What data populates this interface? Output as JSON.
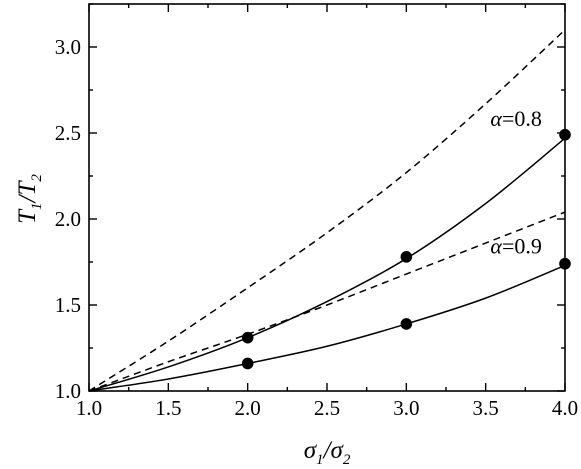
{
  "chart_data": {
    "type": "line",
    "title": "",
    "xlabel": "σ1/σ2",
    "ylabel": "T1/T2",
    "xlim": [
      1.0,
      4.0
    ],
    "ylim": [
      1.0,
      3.25
    ],
    "xticks": [
      1.0,
      1.5,
      2.0,
      2.5,
      3.0,
      3.5,
      4.0
    ],
    "yticks": [
      1.0,
      1.5,
      2.0,
      2.5,
      3.0
    ],
    "xtick_labels": [
      "1.0",
      "1.5",
      "2.0",
      "2.5",
      "3.0",
      "3.5",
      "4.0"
    ],
    "ytick_labels": [
      "1.0",
      "1.5",
      "2.0",
      "2.5",
      "3.0"
    ],
    "grid": false,
    "legend": "none",
    "series": [
      {
        "style": "dashed",
        "x": [
          1.0,
          1.5,
          2.0,
          2.5,
          3.0,
          3.5,
          4.0
        ],
        "y": [
          1.0,
          1.29,
          1.6,
          1.92,
          2.27,
          2.67,
          3.1
        ]
      },
      {
        "style": "solid",
        "x": [
          1.0,
          1.5,
          2.0,
          2.5,
          3.0,
          3.5,
          4.0
        ],
        "y": [
          1.0,
          1.14,
          1.31,
          1.52,
          1.77,
          2.09,
          2.47
        ]
      },
      {
        "style": "dashed",
        "x": [
          1.0,
          1.5,
          2.0,
          2.5,
          3.0,
          3.5,
          4.0
        ],
        "y": [
          1.0,
          1.17,
          1.33,
          1.5,
          1.68,
          1.86,
          2.04
        ]
      },
      {
        "style": "solid",
        "x": [
          1.0,
          1.5,
          2.0,
          2.5,
          3.0,
          3.5,
          4.0
        ],
        "y": [
          1.0,
          1.07,
          1.16,
          1.26,
          1.39,
          1.54,
          1.73
        ]
      },
      {
        "style": "markers",
        "x": [
          2.0,
          3.0,
          4.0
        ],
        "y": [
          1.31,
          1.78,
          2.49
        ]
      },
      {
        "style": "markers",
        "x": [
          2.0,
          3.0,
          4.0
        ],
        "y": [
          1.16,
          1.39,
          1.74
        ]
      }
    ],
    "annotations": [
      {
        "text": "α=0.8",
        "x": 3.53,
        "y": 2.54
      },
      {
        "text": "α=0.9",
        "x": 3.53,
        "y": 1.8
      }
    ]
  },
  "labels": {
    "x_main": "σ",
    "x_sub1": "1",
    "x_sep": "/σ",
    "x_sub2": "2",
    "y_main": "T",
    "y_sub1": "1",
    "y_sep": "/T",
    "y_sub2": "2"
  }
}
